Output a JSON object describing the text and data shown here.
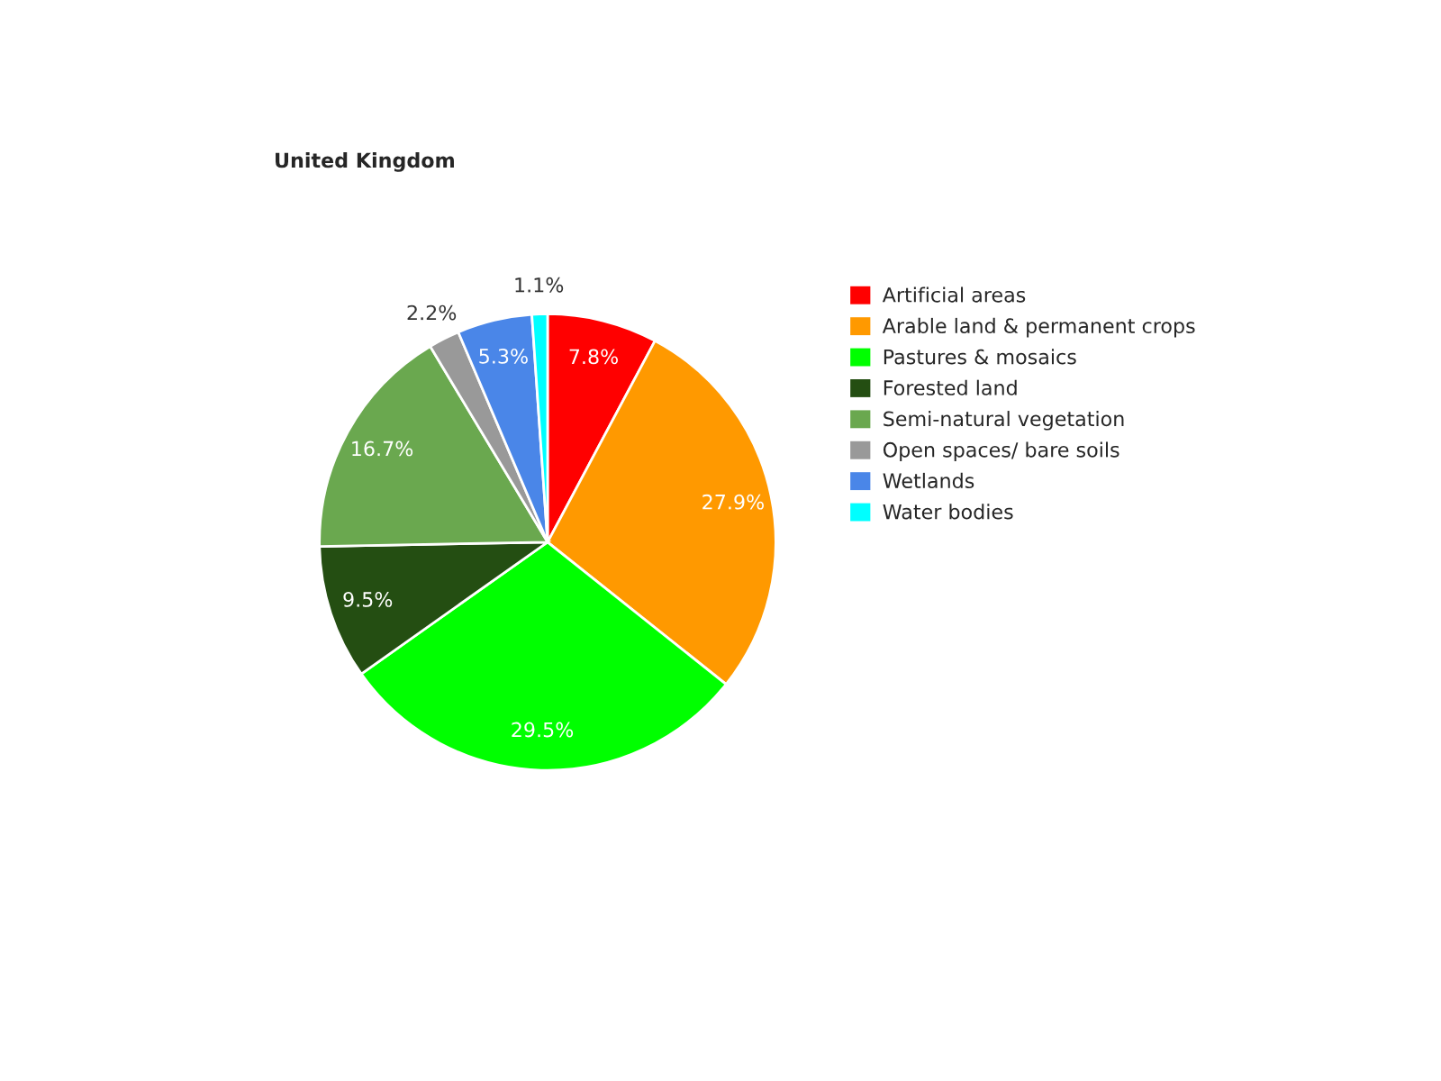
{
  "chart_data": {
    "type": "pie",
    "title": "United Kingdom",
    "categories": [
      "Artificial areas",
      "Arable land & permanent crops",
      "Pastures & mosaics",
      "Forested land",
      "Semi-natural vegetation",
      "Open spaces/ bare soils",
      "Wetlands",
      "Water bodies"
    ],
    "values": [
      7.8,
      27.9,
      29.5,
      9.5,
      16.7,
      2.2,
      5.3,
      1.1
    ],
    "colors": [
      "#ff0000",
      "#ff9900",
      "#00ff00",
      "#244e12",
      "#6aa84f",
      "#999999",
      "#4a86e8",
      "#00ffff"
    ],
    "value_labels": [
      "7.8%",
      "27.9%",
      "29.5%",
      "9.5%",
      "16.7%",
      "2.2%",
      "5.3%",
      "1.1%"
    ],
    "legend": "right"
  }
}
